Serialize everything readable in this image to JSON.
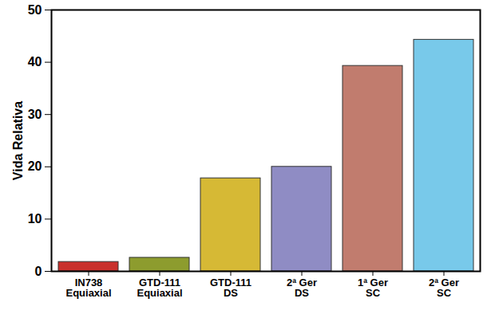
{
  "chart_data": {
    "type": "bar",
    "categories": [
      "IN738\nEquiaxial",
      "GTD-111\nEquiaxial",
      "GTD-111\nDS",
      "2ª Ger\nDS",
      "1ª Ger\nSC",
      "2ª Ger\nSC"
    ],
    "values": [
      1.8,
      2.6,
      17.8,
      20,
      39.3,
      44.3
    ],
    "colors": [
      "#c9302c",
      "#8d9c2e",
      "#d6b935",
      "#8f8cc4",
      "#c17c6e",
      "#78c9ea"
    ],
    "y_label": "Vida Relativa",
    "ylim": [
      0,
      50
    ],
    "yticks": [
      0,
      10,
      20,
      30,
      40,
      50
    ]
  }
}
